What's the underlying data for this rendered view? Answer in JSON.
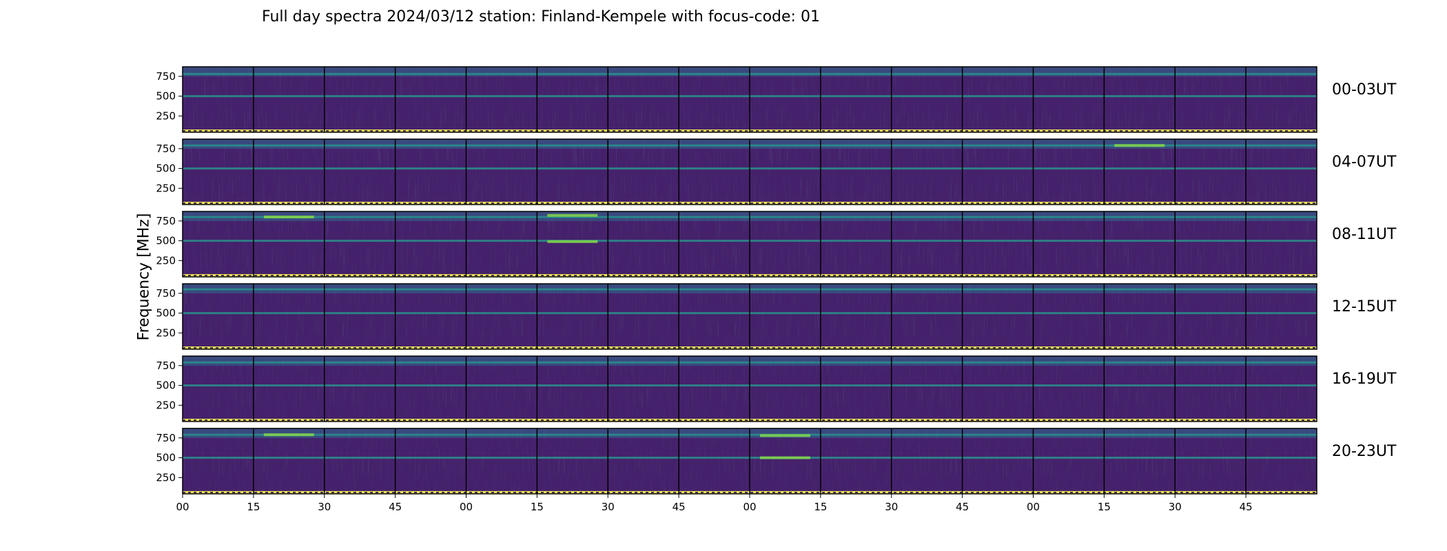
{
  "chart_data": {
    "type": "heatmap",
    "title": "Full day spectra 2024/03/12 station: Finland-Kempele with focus-code: 01",
    "ylabel": "Frequency [MHz]",
    "xlabel": "",
    "colormap": "viridis",
    "ylim": [
      45,
      870
    ],
    "yticks": [
      250,
      500,
      750
    ],
    "xticks": [
      "00",
      "15",
      "30",
      "45",
      "00",
      "15",
      "30",
      "45",
      "00",
      "15",
      "30",
      "45",
      "00",
      "15",
      "30",
      "45"
    ],
    "panels_per_row": 16,
    "panel_minutes": 15,
    "rows": [
      {
        "label": "00-03UT",
        "bright_bands": [
          780,
          500
        ],
        "hotspots": []
      },
      {
        "label": "04-07UT",
        "bright_bands": [
          790,
          500
        ],
        "hotspots": [
          {
            "panel": 13,
            "freq": 790
          }
        ]
      },
      {
        "label": "08-11UT",
        "bright_bands": [
          800,
          500
        ],
        "hotspots": [
          {
            "panel": 5,
            "freq": 820
          },
          {
            "panel": 5,
            "freq": 490
          },
          {
            "panel": 1,
            "freq": 800
          }
        ]
      },
      {
        "label": "12-15UT",
        "bright_bands": [
          800,
          500
        ],
        "hotspots": []
      },
      {
        "label": "16-19UT",
        "bright_bands": [
          790,
          500
        ],
        "hotspots": []
      },
      {
        "label": "20-23UT",
        "bright_bands": [
          790,
          500
        ],
        "hotspots": [
          {
            "panel": 8,
            "freq": 780
          },
          {
            "panel": 8,
            "freq": 500
          },
          {
            "panel": 1,
            "freq": 790
          }
        ]
      }
    ]
  }
}
